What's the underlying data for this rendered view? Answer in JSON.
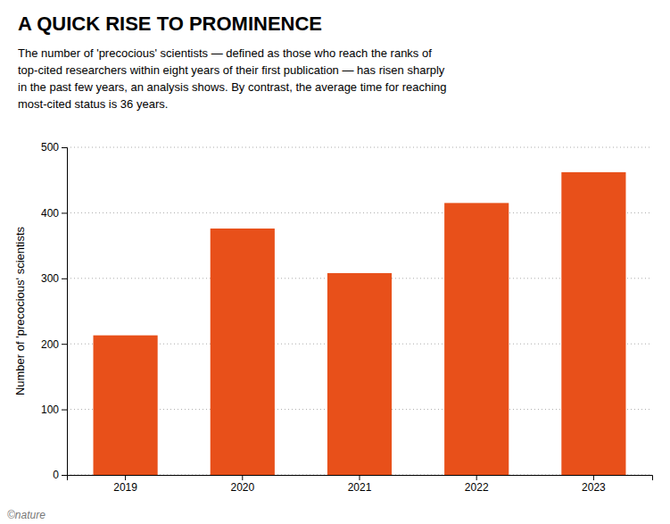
{
  "chart_data": {
    "type": "bar",
    "title": "A QUICK RISE TO PROMINENCE",
    "subtitle": "The number of 'precocious' scientists — defined as those who reach the ranks of\ntop-cited researchers within eight years of their first publication — has risen sharply\nin the past few years, an analysis shows. By contrast, the average time for reaching\nmost-cited status is 36 years.",
    "footer": "©nature",
    "categories": [
      "2019",
      "2020",
      "2021",
      "2022",
      "2023"
    ],
    "values": [
      213,
      376,
      308,
      415,
      462
    ],
    "color": "#E8501A",
    "ylabel": "Number of 'precocious' scientists",
    "ylim": [
      0,
      500
    ],
    "yticks": [
      0,
      100,
      200,
      300,
      400,
      500
    ],
    "grid": true
  }
}
